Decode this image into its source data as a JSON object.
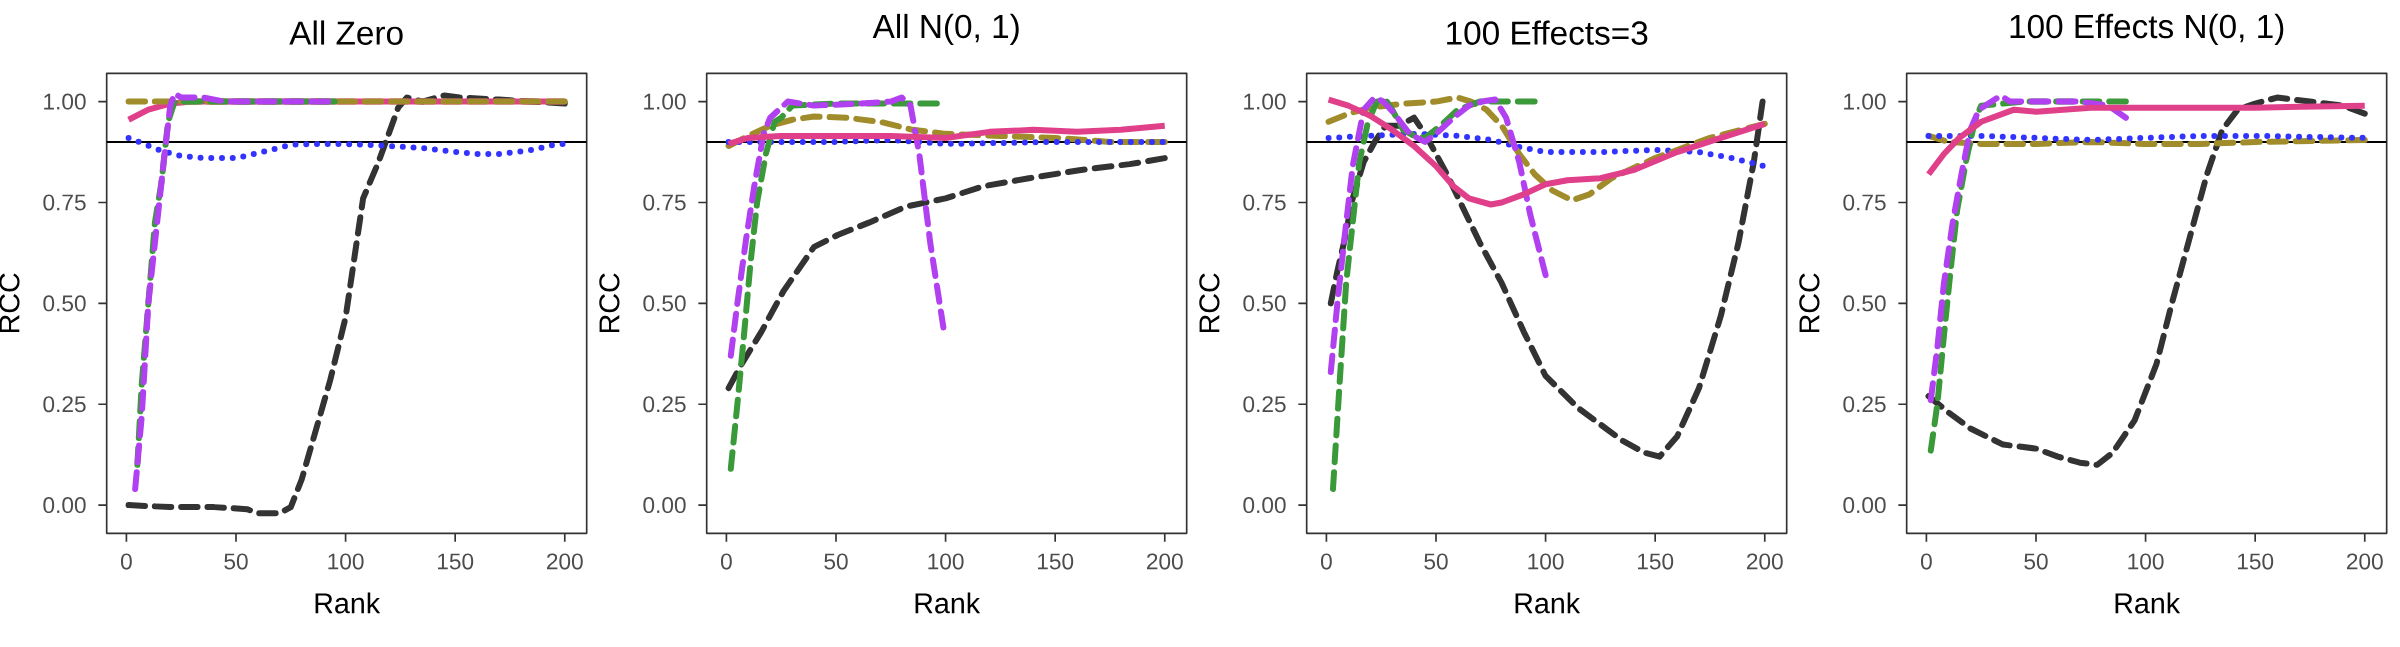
{
  "chart_data": [
    {
      "type": "line",
      "title": "All Zero",
      "xlabel": "Rank",
      "ylabel": "RCC",
      "xlim": [
        -9,
        210
      ],
      "ylim": [
        -0.07,
        1.07
      ],
      "xticks": [
        0,
        50,
        100,
        150,
        200
      ],
      "yticks": [
        {
          "value": 0,
          "label": "0.00"
        },
        {
          "value": 0.25,
          "label": "0.25"
        },
        {
          "value": 0.5,
          "label": "0.50"
        },
        {
          "value": 0.75,
          "label": "0.75"
        },
        {
          "value": 1,
          "label": "1.00"
        }
      ],
      "ref_lines": [
        {
          "axis": "y",
          "value": 0.9,
          "color": "#000000"
        }
      ],
      "series": [
        {
          "color": "#333333",
          "line_style": "dashed",
          "x": [
            1,
            20,
            40,
            55,
            60,
            70,
            75,
            80,
            93,
            100,
            108,
            115,
            119,
            124,
            128,
            135,
            145,
            152,
            170,
            200
          ],
          "values": [
            0.0,
            -0.005,
            -0.005,
            -0.01,
            -0.02,
            -0.02,
            -0.005,
            0.064,
            0.31,
            0.465,
            0.76,
            0.85,
            0.91,
            0.985,
            1.01,
            1.0,
            1.015,
            1.01,
            1.005,
            0.995
          ]
        },
        {
          "color": "#3333ff",
          "line_style": "dotted",
          "x": [
            1,
            15,
            25,
            35,
            50,
            62,
            75,
            85,
            100,
            120,
            135,
            150,
            160,
            170,
            185,
            195,
            200
          ],
          "values": [
            0.91,
            0.88,
            0.865,
            0.86,
            0.86,
            0.875,
            0.893,
            0.895,
            0.895,
            0.89,
            0.885,
            0.875,
            0.87,
            0.87,
            0.88,
            0.893,
            0.895
          ]
        },
        {
          "color": "#e0408a",
          "line_style": "solid",
          "x": [
            1,
            10,
            20,
            30,
            100,
            200
          ],
          "values": [
            0.955,
            0.98,
            0.995,
            1.0,
            1.0,
            1.0
          ]
        },
        {
          "color": "#a08c2a",
          "line_style": "dashed",
          "x": [
            1,
            50,
            100,
            150,
            200
          ],
          "values": [
            1.0,
            1.0,
            1.0,
            1.0,
            1.0
          ]
        },
        {
          "color": "#3a9a3a",
          "line_style": "dashed",
          "x": [
            5,
            7,
            10,
            13,
            16,
            19,
            22,
            30,
            60,
            95
          ],
          "values": [
            0.1,
            0.3,
            0.5,
            0.7,
            0.8,
            0.95,
            1.0,
            1.0,
            1.0,
            1.0
          ]
        },
        {
          "color": "#b040f0",
          "line_style": "dashed",
          "x": [
            4,
            7,
            10,
            13,
            17,
            20,
            22,
            25,
            35,
            45,
            70,
            92
          ],
          "values": [
            0.04,
            0.22,
            0.5,
            0.65,
            0.85,
            0.99,
            1.02,
            1.01,
            1.01,
            1.0,
            1.0,
            1.0
          ]
        }
      ]
    },
    {
      "type": "line",
      "title": "All N(0, 1)",
      "xlabel": "Rank",
      "ylabel": "RCC",
      "xlim": [
        -9,
        210
      ],
      "ylim": [
        -0.07,
        1.07
      ],
      "xticks": [
        0,
        50,
        100,
        150,
        200
      ],
      "yticks": [
        {
          "value": 0,
          "label": "0.00"
        },
        {
          "value": 0.25,
          "label": "0.25"
        },
        {
          "value": 0.5,
          "label": "0.50"
        },
        {
          "value": 0.75,
          "label": "0.75"
        },
        {
          "value": 1,
          "label": "1.00"
        }
      ],
      "ref_lines": [
        {
          "axis": "y",
          "value": 0.9,
          "color": "#000000"
        }
      ],
      "series": [
        {
          "color": "#333333",
          "line_style": "dashed",
          "x": [
            1,
            7,
            16,
            26,
            40,
            51,
            65,
            82,
            100,
            117,
            138,
            161,
            184,
            200
          ],
          "values": [
            0.29,
            0.35,
            0.43,
            0.53,
            0.64,
            0.67,
            0.7,
            0.74,
            0.76,
            0.79,
            0.81,
            0.83,
            0.845,
            0.86
          ]
        },
        {
          "color": "#a08c2a",
          "line_style": "dashed",
          "x": [
            1,
            10,
            20,
            30,
            40,
            55,
            70,
            85,
            100,
            125,
            150,
            175,
            200
          ],
          "values": [
            0.89,
            0.915,
            0.94,
            0.955,
            0.963,
            0.96,
            0.95,
            0.93,
            0.92,
            0.915,
            0.91,
            0.9,
            0.9
          ]
        },
        {
          "color": "#3333ff",
          "line_style": "dotted",
          "x": [
            1,
            50,
            75,
            100,
            150,
            200
          ],
          "values": [
            0.9,
            0.9,
            0.905,
            0.895,
            0.9,
            0.9
          ]
        },
        {
          "color": "#3a9a3a",
          "line_style": "dashed",
          "x": [
            2,
            5,
            8,
            11,
            14,
            18,
            22,
            25,
            30,
            50,
            70,
            85,
            96
          ],
          "values": [
            0.09,
            0.25,
            0.42,
            0.6,
            0.75,
            0.87,
            0.95,
            0.96,
            0.99,
            0.995,
            0.995,
            0.995,
            0.995
          ]
        },
        {
          "color": "#b040f0",
          "line_style": "dashed",
          "x": [
            2,
            5,
            9,
            13,
            17,
            20,
            28,
            40,
            60,
            75,
            80,
            84,
            88,
            93,
            99
          ],
          "values": [
            0.37,
            0.5,
            0.66,
            0.8,
            0.92,
            0.96,
            1.0,
            0.99,
            0.995,
            1.0,
            1.01,
            0.99,
            0.87,
            0.65,
            0.44
          ]
        },
        {
          "color": "#e0408a",
          "line_style": "solid",
          "x": [
            1,
            10,
            25,
            50,
            75,
            100,
            120,
            140,
            160,
            180,
            200
          ],
          "values": [
            0.895,
            0.91,
            0.915,
            0.915,
            0.915,
            0.91,
            0.925,
            0.93,
            0.925,
            0.93,
            0.94
          ]
        }
      ]
    },
    {
      "type": "line",
      "title": "100 Effects=3",
      "xlabel": "Rank",
      "ylabel": "RCC",
      "xlim": [
        -9,
        210
      ],
      "ylim": [
        -0.07,
        1.07
      ],
      "xticks": [
        0,
        50,
        100,
        150,
        200
      ],
      "yticks": [
        {
          "value": 0,
          "label": "0.00"
        },
        {
          "value": 0.25,
          "label": "0.25"
        },
        {
          "value": 0.5,
          "label": "0.50"
        },
        {
          "value": 0.75,
          "label": "0.75"
        },
        {
          "value": 1,
          "label": "1.00"
        }
      ],
      "ref_lines": [
        {
          "axis": "y",
          "value": 0.9,
          "color": "#000000"
        }
      ],
      "series": [
        {
          "color": "#333333",
          "line_style": "dashed",
          "x": [
            2,
            5,
            8,
            12,
            17,
            22,
            27,
            33,
            40,
            45,
            50,
            55,
            62,
            70,
            80,
            90,
            100,
            115,
            125,
            135,
            145,
            152,
            160,
            170,
            180,
            188,
            195,
            199
          ],
          "values": [
            0.5,
            0.58,
            0.65,
            0.76,
            0.85,
            0.9,
            0.94,
            0.94,
            0.96,
            0.92,
            0.87,
            0.82,
            0.74,
            0.65,
            0.55,
            0.43,
            0.32,
            0.24,
            0.2,
            0.16,
            0.13,
            0.12,
            0.17,
            0.29,
            0.47,
            0.65,
            0.85,
            1.0
          ]
        },
        {
          "color": "#3333ff",
          "line_style": "dotted",
          "x": [
            1,
            20,
            40,
            60,
            75,
            90,
            100,
            125,
            150,
            170,
            185,
            200
          ],
          "values": [
            0.91,
            0.915,
            0.92,
            0.915,
            0.905,
            0.885,
            0.875,
            0.875,
            0.88,
            0.875,
            0.86,
            0.84
          ]
        },
        {
          "color": "#a08c2a",
          "line_style": "dashed",
          "x": [
            1,
            10,
            20,
            35,
            50,
            60,
            66,
            73,
            80,
            88,
            95,
            103,
            112,
            120,
            130,
            150,
            175,
            200
          ],
          "values": [
            0.95,
            0.97,
            0.985,
            0.995,
            1.0,
            1.01,
            1.0,
            0.98,
            0.94,
            0.87,
            0.82,
            0.78,
            0.755,
            0.77,
            0.81,
            0.86,
            0.91,
            0.945
          ]
        },
        {
          "color": "#3a9a3a",
          "line_style": "dashed",
          "x": [
            3,
            6,
            9,
            12,
            15,
            19,
            23,
            27,
            30,
            35,
            40,
            45,
            52,
            60,
            70,
            80,
            95
          ],
          "values": [
            0.04,
            0.3,
            0.55,
            0.7,
            0.85,
            0.95,
            1.0,
            1.005,
            0.98,
            0.93,
            0.915,
            0.91,
            0.94,
            0.98,
            1.0,
            1.0,
            1.0
          ]
        },
        {
          "color": "#b040f0",
          "line_style": "dashed",
          "x": [
            2,
            5,
            8,
            12,
            17,
            22,
            26,
            31,
            38,
            45,
            50,
            58,
            65,
            71,
            77,
            82,
            88,
            93,
            100
          ],
          "values": [
            0.33,
            0.5,
            0.65,
            0.84,
            0.98,
            1.01,
            1.0,
            0.97,
            0.92,
            0.9,
            0.92,
            0.96,
            0.99,
            1.0,
            1.005,
            0.96,
            0.85,
            0.72,
            0.57
          ]
        },
        {
          "color": "#e0408a",
          "line_style": "solid",
          "x": [
            1,
            10,
            20,
            30,
            40,
            50,
            58,
            65,
            75,
            80,
            90,
            100,
            110,
            125,
            140,
            160,
            180,
            200
          ],
          "values": [
            1.005,
            0.99,
            0.965,
            0.93,
            0.89,
            0.84,
            0.79,
            0.76,
            0.745,
            0.75,
            0.77,
            0.795,
            0.805,
            0.81,
            0.83,
            0.875,
            0.91,
            0.945
          ]
        }
      ]
    },
    {
      "type": "line",
      "title": "100 Effects N(0, 1)",
      "xlabel": "Rank",
      "ylabel": "RCC",
      "xlim": [
        -9,
        210
      ],
      "ylim": [
        -0.07,
        1.07
      ],
      "xticks": [
        0,
        50,
        100,
        150,
        200
      ],
      "yticks": [
        {
          "value": 0,
          "label": "0.00"
        },
        {
          "value": 0.25,
          "label": "0.25"
        },
        {
          "value": 0.5,
          "label": "0.50"
        },
        {
          "value": 0.75,
          "label": "0.75"
        },
        {
          "value": 1,
          "label": "1.00"
        }
      ],
      "ref_lines": [
        {
          "axis": "y",
          "value": 0.9,
          "color": "#000000"
        }
      ],
      "series": [
        {
          "color": "#333333",
          "line_style": "dashed",
          "x": [
            1,
            10,
            20,
            35,
            50,
            60,
            70,
            78,
            85,
            95,
            105,
            112,
            120,
            128,
            135,
            142,
            150,
            160,
            175,
            190,
            200
          ],
          "values": [
            0.27,
            0.23,
            0.19,
            0.15,
            0.14,
            0.12,
            0.105,
            0.1,
            0.13,
            0.21,
            0.35,
            0.5,
            0.66,
            0.82,
            0.93,
            0.98,
            0.995,
            1.01,
            1.0,
            0.99,
            0.97
          ]
        },
        {
          "color": "#a08c2a",
          "line_style": "dashed",
          "x": [
            1,
            10,
            25,
            50,
            75,
            100,
            125,
            150,
            200
          ],
          "values": [
            0.915,
            0.9,
            0.895,
            0.895,
            0.9,
            0.895,
            0.895,
            0.9,
            0.905
          ]
        },
        {
          "color": "#3333ff",
          "line_style": "dotted",
          "x": [
            1,
            25,
            50,
            75,
            100,
            125,
            150,
            200
          ],
          "values": [
            0.915,
            0.915,
            0.91,
            0.905,
            0.91,
            0.915,
            0.915,
            0.91
          ]
        },
        {
          "color": "#3a9a3a",
          "line_style": "dashed",
          "x": [
            2,
            5,
            8,
            11,
            14,
            18,
            22,
            25,
            45,
            70,
            80,
            91
          ],
          "values": [
            0.135,
            0.25,
            0.42,
            0.58,
            0.73,
            0.85,
            0.95,
            0.99,
            1.0,
            1.0,
            1.0,
            1.0
          ]
        },
        {
          "color": "#b040f0",
          "line_style": "dashed",
          "x": [
            2,
            5,
            8,
            12,
            16,
            20,
            24,
            34,
            38,
            50,
            70,
            83,
            91
          ],
          "values": [
            0.26,
            0.39,
            0.55,
            0.7,
            0.82,
            0.93,
            0.98,
            1.015,
            1.0,
            1.0,
            1.0,
            0.99,
            0.96
          ]
        },
        {
          "color": "#e0408a",
          "line_style": "solid",
          "x": [
            1,
            8,
            15,
            25,
            40,
            50,
            75,
            100,
            150,
            200
          ],
          "values": [
            0.82,
            0.87,
            0.91,
            0.95,
            0.98,
            0.975,
            0.985,
            0.985,
            0.985,
            0.99
          ]
        }
      ]
    }
  ]
}
